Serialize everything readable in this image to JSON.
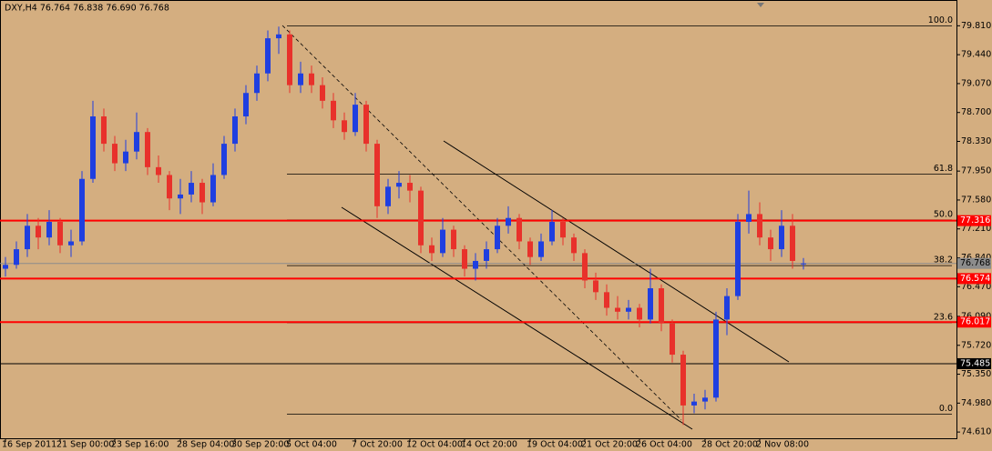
{
  "chart_data": {
    "type": "candlestick",
    "title": "DXY,H4  76.764 76.838 76.690 76.768",
    "up_color": "#1f3fe0",
    "down_color": "#e8312b",
    "ylim": [
      74.53,
      80.14
    ],
    "yticks": [
      {
        "value": 79.81,
        "label": "79.810"
      },
      {
        "value": 79.44,
        "label": "79.440"
      },
      {
        "value": 79.07,
        "label": "79.070"
      },
      {
        "value": 78.7,
        "label": "78.700"
      },
      {
        "value": 78.33,
        "label": "78.330"
      },
      {
        "value": 77.95,
        "label": "77.950"
      },
      {
        "value": 77.58,
        "label": "77.580"
      },
      {
        "value": 77.21,
        "label": "77.210"
      },
      {
        "value": 76.84,
        "label": "76.840"
      },
      {
        "value": 76.47,
        "label": "76.470"
      },
      {
        "value": 76.09,
        "label": "76.090"
      },
      {
        "value": 75.72,
        "label": "75.720"
      },
      {
        "value": 75.35,
        "label": "75.350"
      },
      {
        "value": 74.98,
        "label": "74.980"
      },
      {
        "value": 74.61,
        "label": "74.610"
      }
    ],
    "categories": [
      "16 Sep 2011",
      null,
      null,
      null,
      null,
      "21 Sep 00:00",
      null,
      null,
      null,
      null,
      "23 Sep 16:00",
      null,
      null,
      null,
      null,
      null,
      "28 Sep 04:00",
      null,
      null,
      null,
      null,
      "30 Sep 20:00",
      null,
      null,
      null,
      null,
      "5 Oct 04:00",
      null,
      null,
      null,
      null,
      null,
      "7 Oct 20:00",
      null,
      null,
      null,
      null,
      "12 Oct 04:00",
      null,
      null,
      null,
      null,
      "14 Oct 20:00",
      null,
      null,
      null,
      null,
      null,
      "19 Oct 04:00",
      null,
      null,
      null,
      null,
      "21 Oct 20:00",
      null,
      null,
      null,
      null,
      "26 Oct 04:00",
      null,
      null,
      null,
      null,
      null,
      "28 Oct 20:00",
      null,
      null,
      null,
      null,
      "2 Nov 08:00",
      null,
      null,
      null,
      null
    ],
    "ohlc": [
      [
        76.7,
        76.85,
        76.6,
        76.75
      ],
      [
        76.75,
        77.05,
        76.7,
        76.95
      ],
      [
        76.95,
        77.4,
        76.85,
        77.25
      ],
      [
        77.25,
        77.35,
        76.95,
        77.1
      ],
      [
        77.1,
        77.45,
        77.0,
        77.3
      ],
      [
        77.3,
        77.35,
        76.9,
        77.0
      ],
      [
        77.0,
        77.2,
        76.85,
        77.05
      ],
      [
        77.05,
        77.95,
        77.0,
        77.85
      ],
      [
        77.85,
        78.85,
        77.8,
        78.65
      ],
      [
        78.65,
        78.75,
        78.2,
        78.3
      ],
      [
        78.3,
        78.4,
        77.95,
        78.05
      ],
      [
        78.05,
        78.35,
        77.95,
        78.2
      ],
      [
        78.2,
        78.7,
        78.1,
        78.45
      ],
      [
        78.45,
        78.5,
        77.9,
        78.0
      ],
      [
        78.0,
        78.15,
        77.8,
        77.9
      ],
      [
        77.9,
        77.95,
        77.45,
        77.6
      ],
      [
        77.6,
        77.85,
        77.4,
        77.65
      ],
      [
        77.65,
        77.95,
        77.55,
        77.8
      ],
      [
        77.8,
        77.85,
        77.4,
        77.55
      ],
      [
        77.55,
        78.05,
        77.5,
        77.9
      ],
      [
        77.9,
        78.4,
        77.85,
        78.3
      ],
      [
        78.3,
        78.75,
        78.2,
        78.65
      ],
      [
        78.65,
        79.05,
        78.55,
        78.95
      ],
      [
        78.95,
        79.3,
        78.85,
        79.2
      ],
      [
        79.2,
        79.75,
        79.1,
        79.65
      ],
      [
        79.65,
        79.8,
        79.45,
        79.7
      ],
      [
        79.7,
        79.75,
        78.95,
        79.05
      ],
      [
        79.05,
        79.35,
        78.95,
        79.2
      ],
      [
        79.2,
        79.3,
        78.95,
        79.05
      ],
      [
        79.05,
        79.15,
        78.75,
        78.85
      ],
      [
        78.85,
        78.95,
        78.5,
        78.6
      ],
      [
        78.6,
        78.7,
        78.35,
        78.45
      ],
      [
        78.45,
        78.95,
        78.4,
        78.8
      ],
      [
        78.8,
        78.85,
        78.2,
        78.3
      ],
      [
        78.3,
        78.35,
        77.35,
        77.5
      ],
      [
        77.5,
        77.85,
        77.4,
        77.75
      ],
      [
        77.75,
        77.95,
        77.6,
        77.8
      ],
      [
        77.8,
        77.9,
        77.55,
        77.7
      ],
      [
        77.7,
        77.75,
        76.9,
        77.0
      ],
      [
        77.0,
        77.1,
        76.8,
        76.9
      ],
      [
        76.9,
        77.35,
        76.85,
        77.2
      ],
      [
        77.2,
        77.25,
        76.85,
        76.95
      ],
      [
        76.95,
        77.0,
        76.6,
        76.7
      ],
      [
        76.7,
        76.9,
        76.55,
        76.8
      ],
      [
        76.8,
        77.05,
        76.7,
        76.95
      ],
      [
        76.95,
        77.35,
        76.9,
        77.25
      ],
      [
        77.25,
        77.5,
        77.15,
        77.35
      ],
      [
        77.35,
        77.4,
        76.95,
        77.05
      ],
      [
        77.05,
        77.1,
        76.75,
        76.85
      ],
      [
        76.85,
        77.15,
        76.8,
        77.05
      ],
      [
        77.05,
        77.45,
        77.0,
        77.3
      ],
      [
        77.3,
        77.35,
        77.0,
        77.1
      ],
      [
        77.1,
        77.15,
        76.8,
        76.9
      ],
      [
        76.9,
        76.95,
        76.45,
        76.55
      ],
      [
        76.55,
        76.65,
        76.3,
        76.4
      ],
      [
        76.4,
        76.5,
        76.1,
        76.2
      ],
      [
        76.2,
        76.35,
        76.05,
        76.15
      ],
      [
        76.15,
        76.3,
        76.05,
        76.2
      ],
      [
        76.2,
        76.25,
        75.95,
        76.05
      ],
      [
        76.05,
        76.7,
        76.0,
        76.45
      ],
      [
        76.45,
        76.5,
        75.9,
        76.0
      ],
      [
        76.0,
        76.05,
        75.5,
        75.6
      ],
      [
        75.6,
        75.65,
        74.7,
        74.95
      ],
      [
        74.95,
        75.1,
        74.85,
        75.0
      ],
      [
        75.0,
        75.15,
        74.9,
        75.05
      ],
      [
        75.05,
        76.15,
        75.0,
        76.05
      ],
      [
        76.05,
        76.45,
        75.85,
        76.35
      ],
      [
        76.35,
        77.4,
        76.3,
        77.3
      ],
      [
        77.3,
        77.7,
        77.15,
        77.4
      ],
      [
        77.4,
        77.55,
        77.0,
        77.1
      ],
      [
        77.1,
        77.2,
        76.8,
        76.95
      ],
      [
        76.95,
        77.45,
        76.85,
        77.25
      ],
      [
        77.25,
        77.4,
        76.7,
        76.8
      ],
      [
        76.764,
        76.838,
        76.69,
        76.768
      ]
    ],
    "hlines": [
      {
        "value": 77.316,
        "label": "77.316",
        "color": "#ff0000"
      },
      {
        "value": 76.574,
        "label": "76.574",
        "color": "#ff0000"
      },
      {
        "value": 76.017,
        "label": "76.017",
        "color": "#ff0000"
      },
      {
        "value": 75.485,
        "label": "75.485",
        "color": "#000000"
      },
      {
        "value": 76.768,
        "label": "76.768",
        "color": "#8c8c8c"
      }
    ],
    "fibonacci": [
      {
        "label": "100.0",
        "price": 79.81
      },
      {
        "label": "61.8",
        "price": 77.91
      },
      {
        "label": "50.0",
        "price": 77.325
      },
      {
        "label": "38.2",
        "price": 76.74
      },
      {
        "label": "23.6",
        "price": 76.01
      },
      {
        "label": "0.0",
        "price": 74.84
      }
    ]
  }
}
